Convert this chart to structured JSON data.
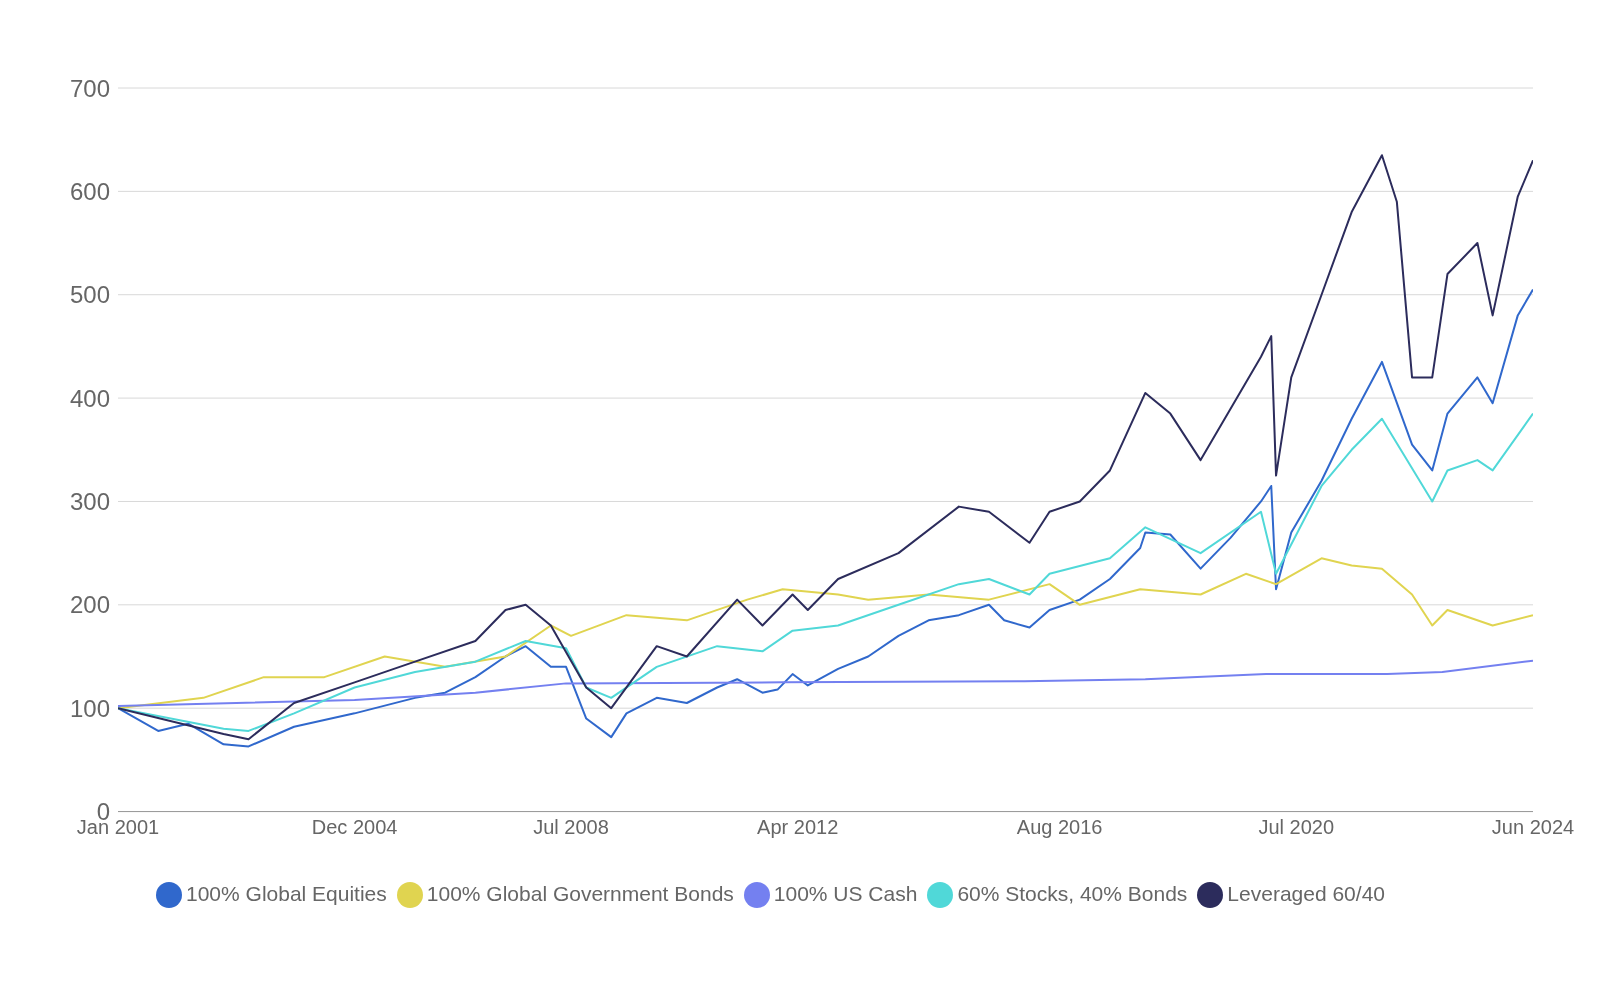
{
  "chart_data": {
    "type": "line",
    "xlim": [
      "2001-01",
      "2024-06"
    ],
    "xticks": [
      {
        "value": "2001-01",
        "label": "Jan 2001"
      },
      {
        "value": "2004-12",
        "label": "Dec 2004"
      },
      {
        "value": "2008-07",
        "label": "Jul 2008"
      },
      {
        "value": "2012-04",
        "label": "Apr 2012"
      },
      {
        "value": "2016-08",
        "label": "Aug 2016"
      },
      {
        "value": "2020-07",
        "label": "Jul 2020"
      },
      {
        "value": "2024-06",
        "label": "Jun 2024"
      }
    ],
    "ylim": [
      0,
      700
    ],
    "yticks": [
      0,
      100,
      200,
      300,
      400,
      500,
      600,
      700
    ],
    "grid": "y",
    "legend": "bottom",
    "marker": "none",
    "line_style": "solid",
    "series": [
      {
        "name": "100% Global Equities",
        "color": "#3068cc",
        "x": [
          "2001-01",
          "2001-09",
          "2002-03",
          "2002-10",
          "2003-03",
          "2003-12",
          "2004-12",
          "2005-12",
          "2006-06",
          "2006-12",
          "2007-06",
          "2007-10",
          "2008-03",
          "2008-06",
          "2008-10",
          "2009-03",
          "2009-06",
          "2009-12",
          "2010-06",
          "2010-12",
          "2011-04",
          "2011-09",
          "2011-12",
          "2012-03",
          "2012-06",
          "2012-12",
          "2013-06",
          "2013-12",
          "2014-06",
          "2014-12",
          "2015-06",
          "2015-09",
          "2016-02",
          "2016-06",
          "2016-12",
          "2017-06",
          "2017-12",
          "2018-01",
          "2018-06",
          "2018-12",
          "2019-06",
          "2019-12",
          "2020-02",
          "2020-03",
          "2020-06",
          "2020-12",
          "2021-06",
          "2021-12",
          "2022-06",
          "2022-10",
          "2023-01",
          "2023-07",
          "2023-10",
          "2024-03",
          "2024-06"
        ],
        "values": [
          100,
          78,
          85,
          65,
          63,
          82,
          95,
          110,
          115,
          130,
          150,
          160,
          140,
          140,
          90,
          72,
          95,
          110,
          105,
          120,
          128,
          115,
          118,
          133,
          122,
          138,
          150,
          170,
          185,
          190,
          200,
          185,
          178,
          195,
          205,
          225,
          255,
          270,
          268,
          235,
          265,
          300,
          315,
          215,
          270,
          320,
          380,
          435,
          355,
          330,
          385,
          420,
          395,
          480,
          505
        ]
      },
      {
        "name": "100% Global Government Bonds",
        "color": "#e0d450",
        "x": [
          "2001-01",
          "2002-06",
          "2003-06",
          "2004-06",
          "2005-06",
          "2006-06",
          "2007-06",
          "2008-03",
          "2008-07",
          "2009-06",
          "2010-06",
          "2011-06",
          "2012-01",
          "2012-12",
          "2013-06",
          "2014-06",
          "2015-06",
          "2016-06",
          "2016-12",
          "2017-12",
          "2018-12",
          "2019-09",
          "2020-03",
          "2020-12",
          "2021-06",
          "2021-12",
          "2022-06",
          "2022-10",
          "2023-01",
          "2023-10",
          "2024-06"
        ],
        "values": [
          100,
          110,
          130,
          130,
          150,
          140,
          150,
          180,
          170,
          190,
          185,
          205,
          215,
          210,
          205,
          210,
          205,
          220,
          200,
          215,
          210,
          230,
          220,
          245,
          238,
          235,
          210,
          180,
          195,
          180,
          190
        ]
      },
      {
        "name": "100% US Cash",
        "color": "#7480f0",
        "x": [
          "2001-01",
          "2004-12",
          "2006-12",
          "2008-06",
          "2012-01",
          "2016-01",
          "2018-01",
          "2020-01",
          "2022-01",
          "2022-12",
          "2024-06"
        ],
        "values": [
          102,
          108,
          115,
          124,
          125,
          126,
          128,
          133,
          133,
          135,
          146
        ]
      },
      {
        "name": "60% Stocks, 40% Bonds",
        "color": "#50d8d8",
        "x": [
          "2001-01",
          "2002-10",
          "2003-03",
          "2003-12",
          "2004-12",
          "2005-12",
          "2006-12",
          "2007-10",
          "2008-06",
          "2008-10",
          "2009-03",
          "2009-12",
          "2010-12",
          "2011-09",
          "2012-03",
          "2012-12",
          "2013-12",
          "2014-12",
          "2015-06",
          "2016-02",
          "2016-06",
          "2017-06",
          "2018-01",
          "2018-12",
          "2019-12",
          "2020-03",
          "2020-12",
          "2021-06",
          "2021-12",
          "2022-10",
          "2023-01",
          "2023-07",
          "2023-10",
          "2024-06"
        ],
        "values": [
          100,
          80,
          78,
          95,
          120,
          135,
          145,
          165,
          158,
          120,
          110,
          140,
          160,
          155,
          175,
          180,
          200,
          220,
          225,
          210,
          230,
          245,
          275,
          250,
          290,
          230,
          315,
          350,
          380,
          300,
          330,
          340,
          330,
          385
        ]
      },
      {
        "name": "Leveraged 60/40",
        "color": "#2c2c5c",
        "x": [
          "2001-01",
          "2002-10",
          "2003-03",
          "2003-12",
          "2004-12",
          "2005-12",
          "2006-12",
          "2007-06",
          "2007-10",
          "2008-03",
          "2008-10",
          "2009-03",
          "2009-12",
          "2010-06",
          "2011-04",
          "2011-09",
          "2012-03",
          "2012-06",
          "2012-12",
          "2013-12",
          "2014-12",
          "2015-06",
          "2016-02",
          "2016-06",
          "2016-12",
          "2017-06",
          "2018-01",
          "2018-06",
          "2018-12",
          "2019-06",
          "2019-12",
          "2020-02",
          "2020-03",
          "2020-06",
          "2020-12",
          "2021-06",
          "2021-12",
          "2022-03",
          "2022-06",
          "2022-10",
          "2023-01",
          "2023-07",
          "2023-10",
          "2024-03",
          "2024-06"
        ],
        "values": [
          100,
          75,
          70,
          105,
          125,
          145,
          165,
          195,
          200,
          180,
          120,
          100,
          160,
          150,
          205,
          180,
          210,
          195,
          225,
          250,
          295,
          290,
          260,
          290,
          300,
          330,
          405,
          385,
          340,
          390,
          440,
          460,
          325,
          420,
          500,
          580,
          635,
          590,
          420,
          420,
          520,
          550,
          480,
          595,
          630
        ]
      }
    ]
  }
}
